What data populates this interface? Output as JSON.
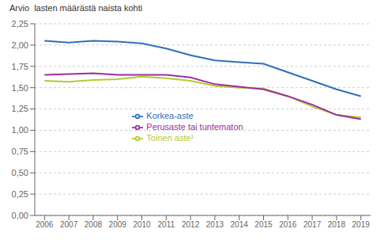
{
  "chart_data": {
    "type": "line",
    "y_label": "Arvio  lasten määrästä naista kohti",
    "x": [
      2006,
      2007,
      2008,
      2009,
      2010,
      2011,
      2012,
      2013,
      2014,
      2015,
      2016,
      2017,
      2018,
      2019
    ],
    "series": [
      {
        "name": "Korkea-aste",
        "color": "#3070b8",
        "values": [
          2.05,
          2.03,
          2.05,
          2.04,
          2.02,
          1.96,
          1.88,
          1.82,
          1.8,
          1.78,
          1.68,
          1.58,
          1.48,
          1.4
        ]
      },
      {
        "name": "Toinen aste¹",
        "color": "#b5c934",
        "values": [
          1.58,
          1.57,
          1.59,
          1.6,
          1.63,
          1.61,
          1.58,
          1.52,
          1.5,
          1.49,
          1.4,
          1.28,
          1.18,
          1.15
        ]
      },
      {
        "name": "Perusaste tai tuntematon",
        "color": "#9e2ea0",
        "values": [
          1.65,
          1.66,
          1.67,
          1.65,
          1.65,
          1.65,
          1.62,
          1.54,
          1.51,
          1.48,
          1.4,
          1.3,
          1.18,
          1.13
        ]
      }
    ],
    "xlim": [
      2005.6,
      2019.4
    ],
    "xticks": [
      2006,
      2007,
      2008,
      2009,
      2010,
      2011,
      2012,
      2013,
      2014,
      2015,
      2016,
      2017,
      2018,
      2019
    ],
    "ylim": [
      0,
      2.25
    ],
    "yticks": [
      {
        "value": 0,
        "label": "0,00"
      },
      {
        "value": 0.25,
        "label": "0,25"
      },
      {
        "value": 0.5,
        "label": "0,50"
      },
      {
        "value": 0.75,
        "label": "0,75"
      },
      {
        "value": 1,
        "label": "1,00"
      },
      {
        "value": 1.25,
        "label": "1,25"
      },
      {
        "value": 1.5,
        "label": "1,50"
      },
      {
        "value": 1.75,
        "label": "1,75"
      },
      {
        "value": 2,
        "label": "2,00"
      },
      {
        "value": 2.25,
        "label": "2,25"
      }
    ],
    "grid": true,
    "legend": "center"
  }
}
